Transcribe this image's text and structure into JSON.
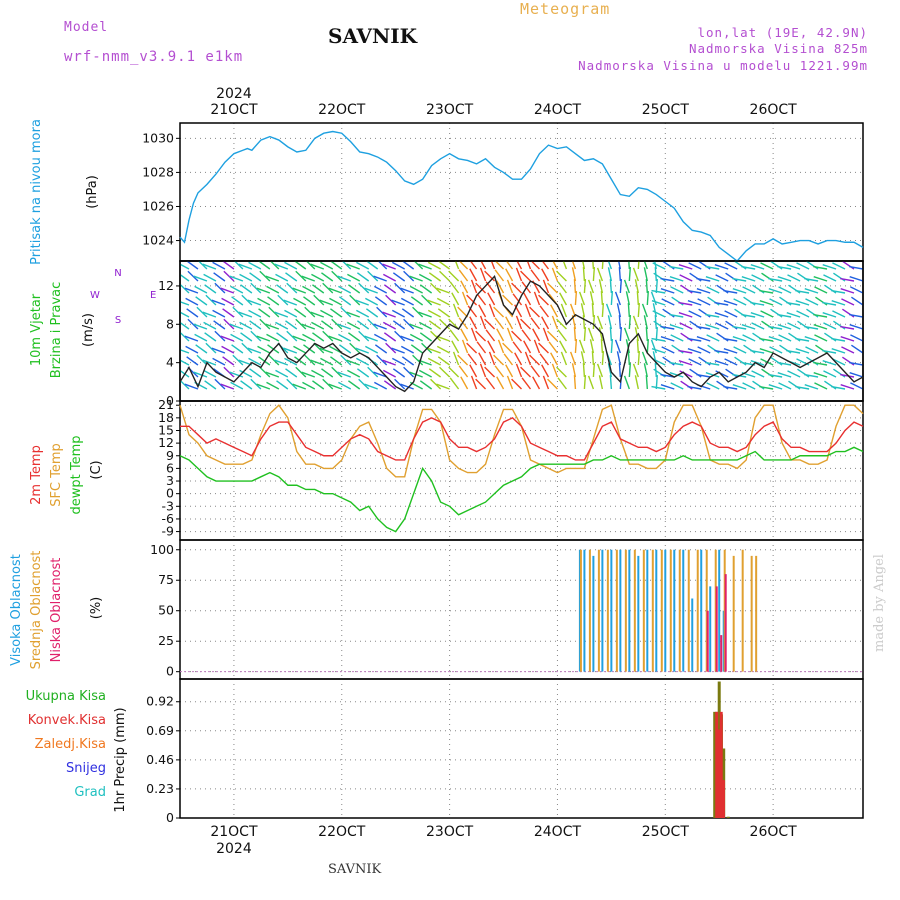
{
  "header": {
    "model_label": "Model",
    "model_value": "wrf-nmm_v3.9.1  e1km",
    "title": "SAVNIK",
    "meteogram": "Meteogram",
    "lonlat": "lon,lat (19E, 42.9N)",
    "elev": "Nadmorska Visina 825m",
    "elev_model": "Nadmorska Visina u modelu 1221.99m",
    "footer_title": "SAVNIK",
    "watermark": "made by Angel"
  },
  "colors": {
    "pressure": "#1ea0e0",
    "temp2m": "#e83030",
    "sfc": "#e0a030",
    "dew": "#20c020",
    "high_cloud": "#20a0e0",
    "mid_cloud": "#e0a030",
    "low_cloud": "#e0206a",
    "precip_total": "#20b020",
    "precip_conv": "#e03030",
    "precip_strat": "#f07820",
    "snow": "#3030e0",
    "graupel": "#20c0c0",
    "brown_bar": "#7a7a10",
    "wind_purple": "#9020d0"
  },
  "x_axis": {
    "year_top": "2024",
    "year_bottom": "2024",
    "days": [
      "21OCT",
      "22OCT",
      "23OCT",
      "24OCT",
      "25OCT",
      "26OCT"
    ],
    "start_hour": -12,
    "end_hour": 140
  },
  "panels": {
    "pressure": {
      "ylabel1": "Pritisak na nivou mora",
      "ylabel2": "(hPa)",
      "ticks": [
        "1030",
        "1028",
        "1026",
        "1024"
      ],
      "ylim": [
        1022.8,
        1030.9
      ]
    },
    "wind": {
      "ylabel1": "10m Vjetar",
      "ylabel2": "Brzina i Pravac",
      "units": "(m/s)",
      "ticks": [
        "12",
        "8",
        "4",
        "0"
      ],
      "ylim": [
        0,
        14.6
      ],
      "compass_n": "N",
      "compass_s": "S",
      "compass_w": "W",
      "compass_e": "E"
    },
    "temperature": {
      "ylabel1": "2m Temp",
      "ylabel2": "SFC Temp",
      "ylabel3": "dewpt Temp",
      "units": "(C)",
      "ticks": [
        "21",
        "18",
        "15",
        "12",
        "9",
        "6",
        "3",
        "0",
        "-3",
        "-6",
        "-9"
      ],
      "ylim": [
        -11,
        22
      ]
    },
    "clouds": {
      "ylabel1": "Visoka Oblacnost",
      "ylabel2": "Srednja Oblacnost",
      "ylabel3": "Niska Oblacnost",
      "units": "(%)",
      "ticks": [
        "100",
        "75",
        "50",
        "25",
        "0"
      ],
      "ylim": [
        -6,
        108
      ]
    },
    "precip": {
      "legend": [
        "Ukupna Kisa",
        "Konvek.Kisa",
        "Zaledj.Kisa",
        "Snijeg",
        "Grad"
      ],
      "ylabel": "1hr Precip (mm)",
      "ticks": [
        "0.92",
        "0.69",
        "0.46",
        "0.23",
        "0"
      ],
      "ylim": [
        0,
        1.1
      ]
    }
  },
  "chart_data": [
    {
      "type": "line",
      "title": "SAVNIK",
      "ylabel": "Pritisak na nivou mora (hPa)",
      "x_unit": "hours from 21OCT 00UTC",
      "series": [
        {
          "name": "Pritisak na nivou mora",
          "x": [
            -12,
            -11,
            -10,
            -9,
            -8,
            -6,
            -4,
            -2,
            0,
            2,
            3,
            4,
            6,
            8,
            10,
            12,
            14,
            16,
            18,
            20,
            22,
            24,
            26,
            28,
            30,
            32,
            34,
            36,
            38,
            40,
            42,
            44,
            46,
            48,
            50,
            52,
            54,
            56,
            58,
            60,
            62,
            64,
            66,
            68,
            70,
            72,
            74,
            76,
            78,
            80,
            82,
            84,
            86,
            88,
            90,
            92,
            94,
            96,
            98,
            100,
            102,
            104,
            106,
            108,
            110,
            112,
            114,
            116,
            118,
            120,
            122,
            124,
            126,
            128,
            130,
            132,
            134,
            136,
            138,
            140
          ],
          "values": [
            1024.2,
            1023.9,
            1025.2,
            1026.2,
            1026.8,
            1027.3,
            1027.9,
            1028.6,
            1029.1,
            1029.3,
            1029.4,
            1029.3,
            1029.9,
            1030.1,
            1029.9,
            1029.5,
            1029.2,
            1029.3,
            1030.0,
            1030.3,
            1030.4,
            1030.3,
            1029.8,
            1029.2,
            1029.1,
            1028.9,
            1028.6,
            1028.1,
            1027.5,
            1027.3,
            1027.6,
            1028.4,
            1028.8,
            1029.1,
            1028.8,
            1028.7,
            1028.5,
            1028.8,
            1028.3,
            1028.0,
            1027.6,
            1027.6,
            1028.2,
            1029.1,
            1029.6,
            1029.4,
            1029.5,
            1029.1,
            1028.7,
            1028.8,
            1028.5,
            1027.6,
            1026.7,
            1026.6,
            1027.1,
            1027.0,
            1026.7,
            1026.3,
            1025.9,
            1025.1,
            1024.6,
            1024.5,
            1024.3,
            1023.6,
            1023.2,
            1022.8,
            1023.4,
            1023.8,
            1023.8,
            1024.1,
            1023.8,
            1023.9,
            1024.0,
            1024.0,
            1023.8,
            1024.0,
            1024.0,
            1023.9,
            1023.9,
            1023.6
          ]
        }
      ]
    },
    {
      "type": "line",
      "ylabel": "10m Vjetar Brzina i Pravac (m/s)",
      "x_unit": "hours from 21OCT 00UTC",
      "series": [
        {
          "name": "10m Vjetar",
          "x": [
            -12,
            -10,
            -8,
            -6,
            -4,
            -2,
            0,
            2,
            4,
            6,
            8,
            10,
            12,
            14,
            16,
            18,
            20,
            22,
            24,
            26,
            28,
            30,
            32,
            34,
            36,
            38,
            40,
            42,
            44,
            46,
            48,
            50,
            52,
            54,
            56,
            58,
            60,
            62,
            64,
            66,
            68,
            70,
            72,
            74,
            76,
            78,
            80,
            82,
            84,
            86,
            88,
            90,
            92,
            94,
            96,
            98,
            100,
            102,
            104,
            106,
            108,
            110,
            112,
            114,
            116,
            118,
            120,
            122,
            124,
            126,
            128,
            130,
            132,
            134,
            136,
            138,
            140
          ],
          "values": [
            2,
            3.5,
            1.5,
            4,
            3,
            2.5,
            2,
            3,
            4,
            3.5,
            5,
            6,
            4.5,
            4,
            5,
            6,
            5.5,
            6,
            5,
            4.5,
            5,
            4.5,
            3.5,
            2.5,
            1.5,
            1,
            2,
            5,
            6,
            7,
            8,
            7.5,
            9,
            11,
            12,
            13,
            10,
            9,
            11,
            12.5,
            12,
            11,
            10,
            8,
            9,
            8.5,
            8,
            7,
            3,
            2,
            6,
            7,
            5,
            4,
            3,
            2.5,
            3,
            2,
            1.5,
            2.5,
            3,
            2,
            2.5,
            3,
            4,
            3.5,
            5,
            4.5,
            4,
            3.5,
            4,
            4.5,
            5,
            4,
            3,
            2,
            2.5
          ]
        },
        {
          "name": "direction_arrows",
          "values": []
        }
      ]
    },
    {
      "type": "line",
      "ylabel": "Temp (C)",
      "x_unit": "hours from 21OCT 00UTC",
      "series": [
        {
          "name": "2m Temp",
          "x": [
            -12,
            -10,
            -8,
            -6,
            -4,
            -2,
            0,
            2,
            4,
            6,
            8,
            10,
            12,
            14,
            16,
            18,
            20,
            22,
            24,
            26,
            28,
            30,
            32,
            34,
            36,
            38,
            40,
            42,
            44,
            46,
            48,
            50,
            52,
            54,
            56,
            58,
            60,
            62,
            64,
            66,
            68,
            70,
            72,
            74,
            76,
            78,
            80,
            82,
            84,
            86,
            88,
            90,
            92,
            94,
            96,
            98,
            100,
            102,
            104,
            106,
            108,
            110,
            112,
            114,
            116,
            118,
            120,
            122,
            124,
            126,
            128,
            130,
            132,
            134,
            136,
            138,
            140
          ],
          "values": [
            16,
            16,
            14,
            12,
            13,
            12,
            11,
            10,
            9,
            13,
            16,
            17,
            17,
            14,
            11,
            10,
            9,
            9,
            11,
            13,
            14,
            13,
            10,
            9,
            8,
            8,
            13,
            17,
            18,
            17,
            13,
            11,
            11,
            10,
            11,
            13,
            17,
            18,
            16,
            12,
            11,
            10,
            9,
            9,
            8,
            8,
            12,
            16,
            17,
            13,
            12,
            11,
            11,
            10,
            11,
            14,
            16,
            17,
            16,
            12,
            11,
            11,
            10,
            11,
            14,
            16,
            17,
            13,
            11,
            11,
            10,
            10,
            10,
            12,
            15,
            17,
            16
          ]
        },
        {
          "name": "SFC Temp",
          "x": [
            -12,
            -10,
            -8,
            -6,
            -4,
            -2,
            0,
            2,
            4,
            6,
            8,
            10,
            12,
            14,
            16,
            18,
            20,
            22,
            24,
            26,
            28,
            30,
            32,
            34,
            36,
            38,
            40,
            42,
            44,
            46,
            48,
            50,
            52,
            54,
            56,
            58,
            60,
            62,
            64,
            66,
            68,
            70,
            72,
            74,
            76,
            78,
            80,
            82,
            84,
            86,
            88,
            90,
            92,
            94,
            96,
            98,
            100,
            102,
            104,
            106,
            108,
            110,
            112,
            114,
            116,
            118,
            120,
            122,
            124,
            126,
            128,
            130,
            132,
            134,
            136,
            138,
            140
          ],
          "values": [
            21,
            14,
            12,
            9,
            8,
            7,
            7,
            7,
            8,
            14,
            19,
            21,
            18,
            10,
            7,
            7,
            6,
            6,
            8,
            13,
            16,
            17,
            12,
            6,
            4,
            4,
            13,
            20,
            20,
            17,
            8,
            6,
            5,
            5,
            7,
            14,
            20,
            20,
            16,
            8,
            7,
            6,
            5,
            6,
            6,
            6,
            13,
            20,
            21,
            13,
            7,
            7,
            6,
            6,
            8,
            17,
            21,
            21,
            16,
            8,
            7,
            7,
            6,
            8,
            18,
            21,
            21,
            12,
            8,
            8,
            7,
            7,
            8,
            16,
            21,
            21,
            19
          ]
        },
        {
          "name": "dewpt Temp",
          "x": [
            -12,
            -10,
            -8,
            -6,
            -4,
            -2,
            0,
            2,
            4,
            6,
            8,
            10,
            12,
            14,
            16,
            18,
            20,
            22,
            24,
            26,
            28,
            30,
            32,
            34,
            36,
            38,
            40,
            42,
            44,
            46,
            48,
            50,
            52,
            54,
            56,
            58,
            60,
            62,
            64,
            66,
            68,
            70,
            72,
            74,
            76,
            78,
            80,
            82,
            84,
            86,
            88,
            90,
            92,
            94,
            96,
            98,
            100,
            102,
            104,
            106,
            108,
            110,
            112,
            114,
            116,
            118,
            120,
            122,
            124,
            126,
            128,
            130,
            132,
            134,
            136,
            138,
            140
          ],
          "values": [
            9,
            8,
            6,
            4,
            3,
            3,
            3,
            3,
            3,
            4,
            5,
            4,
            2,
            2,
            1,
            1,
            0,
            0,
            -1,
            -2,
            -4,
            -3,
            -6,
            -8,
            -9,
            -6,
            0,
            6,
            3,
            -2,
            -3,
            -5,
            -4,
            -3,
            -2,
            0,
            2,
            3,
            4,
            6,
            7,
            7,
            7,
            7,
            7,
            7,
            8,
            8,
            9,
            8,
            8,
            8,
            8,
            8,
            8,
            8,
            9,
            8,
            8,
            8,
            8,
            8,
            8,
            9,
            10,
            8,
            8,
            8,
            8,
            9,
            9,
            9,
            9,
            10,
            10,
            11,
            10
          ]
        }
      ]
    },
    {
      "type": "bar",
      "ylabel": "Oblacnost (%)",
      "x_unit": "hours from 21OCT 00UTC",
      "series": [
        {
          "name": "Visoka Oblacnost",
          "x": [
            77,
            78,
            80,
            82,
            84,
            86,
            88,
            90,
            92,
            94,
            96,
            98,
            100,
            102,
            104,
            106,
            108,
            109
          ],
          "values": [
            100,
            100,
            95,
            100,
            100,
            100,
            100,
            95,
            100,
            100,
            100,
            100,
            100,
            60,
            100,
            70,
            100,
            50
          ]
        },
        {
          "name": "Srednja Oblacnost",
          "x": [
            77,
            79,
            81,
            83,
            85,
            87,
            89,
            91,
            93,
            95,
            97,
            99,
            101,
            103,
            105,
            107,
            109,
            111,
            113,
            115,
            116
          ],
          "values": [
            100,
            100,
            100,
            100,
            100,
            100,
            100,
            100,
            100,
            100,
            100,
            100,
            100,
            100,
            100,
            100,
            100,
            95,
            100,
            95,
            95
          ]
        },
        {
          "name": "Niska Oblacnost",
          "x": [
            105,
            107,
            108,
            109
          ],
          "values": [
            50,
            70,
            30,
            80
          ]
        }
      ]
    },
    {
      "type": "bar",
      "ylabel": "1hr Precip (mm)",
      "x_unit": "hours from 21OCT 00UTC",
      "series": [
        {
          "name": "Ukupna Kisa",
          "x": [
            107,
            107.5,
            108,
            108.5,
            109,
            110
          ],
          "values": [
            0.84,
            0.84,
            1.08,
            0.82,
            0.55,
            0.01
          ]
        },
        {
          "name": "Konvek.Kisa",
          "x": [
            107,
            107.5,
            108,
            108.5
          ],
          "values": [
            0.84,
            0.7,
            0.84,
            0.3
          ]
        }
      ]
    }
  ]
}
